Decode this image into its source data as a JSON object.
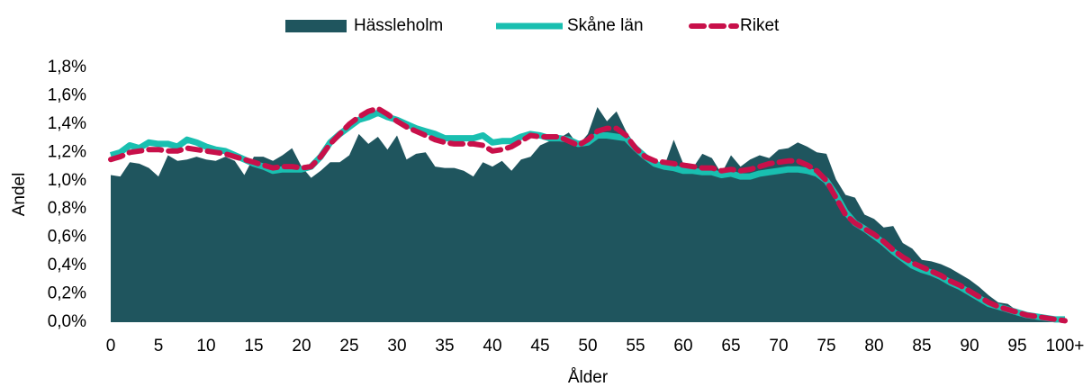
{
  "chart_data": {
    "type": "line",
    "x_label": "Ålder",
    "y_label": "Andel",
    "legend": "top",
    "categories": [
      "0",
      null,
      null,
      null,
      null,
      "5",
      null,
      null,
      null,
      null,
      "10",
      null,
      null,
      null,
      null,
      "15",
      null,
      null,
      null,
      null,
      "20",
      null,
      null,
      null,
      null,
      "25",
      null,
      null,
      null,
      null,
      "30",
      null,
      null,
      null,
      null,
      "35",
      null,
      null,
      null,
      null,
      "40",
      null,
      null,
      null,
      null,
      "45",
      null,
      null,
      null,
      null,
      "50",
      null,
      null,
      null,
      null,
      "55",
      null,
      null,
      null,
      null,
      "60",
      null,
      null,
      null,
      null,
      "65",
      null,
      null,
      null,
      null,
      "70",
      null,
      null,
      null,
      null,
      "75",
      null,
      null,
      null,
      null,
      "80",
      null,
      null,
      null,
      null,
      "85",
      null,
      null,
      null,
      null,
      "90",
      null,
      null,
      null,
      null,
      "95",
      null,
      null,
      null,
      null,
      "100+"
    ],
    "ylim": [
      0,
      1.8
    ],
    "yticks": [
      {
        "value": 0,
        "label": "0,0%"
      },
      {
        "value": 0.2,
        "label": "0,2%"
      },
      {
        "value": 0.4,
        "label": "0,4%"
      },
      {
        "value": 0.6,
        "label": "0,6%"
      },
      {
        "value": 0.8,
        "label": "0,8%"
      },
      {
        "value": 1.0,
        "label": "1,0%"
      },
      {
        "value": 1.2,
        "label": "1,2%"
      },
      {
        "value": 1.4,
        "label": "1,4%"
      },
      {
        "value": 1.6,
        "label": "1,6%"
      },
      {
        "value": 1.8,
        "label": "1,8%"
      }
    ],
    "series": [
      {
        "name": "Hässleholm",
        "type": "area",
        "color": "#1f555e",
        "values": [
          1.04,
          1.03,
          1.13,
          1.12,
          1.09,
          1.03,
          1.18,
          1.14,
          1.15,
          1.17,
          1.15,
          1.14,
          1.17,
          1.14,
          1.04,
          1.17,
          1.17,
          1.14,
          1.18,
          1.23,
          1.1,
          1.02,
          1.07,
          1.13,
          1.13,
          1.18,
          1.33,
          1.26,
          1.31,
          1.22,
          1.32,
          1.15,
          1.19,
          1.2,
          1.1,
          1.09,
          1.09,
          1.07,
          1.03,
          1.13,
          1.1,
          1.14,
          1.07,
          1.15,
          1.17,
          1.25,
          1.28,
          1.3,
          1.34,
          1.25,
          1.33,
          1.52,
          1.42,
          1.49,
          1.35,
          1.25,
          1.15,
          1.1,
          1.1,
          1.29,
          1.12,
          1.09,
          1.19,
          1.16,
          1.05,
          1.18,
          1.1,
          1.15,
          1.18,
          1.16,
          1.22,
          1.23,
          1.27,
          1.24,
          1.2,
          1.19,
          1.01,
          0.9,
          0.88,
          0.76,
          0.73,
          0.67,
          0.68,
          0.56,
          0.52,
          0.44,
          0.43,
          0.41,
          0.38,
          0.34,
          0.3,
          0.25,
          0.19,
          0.14,
          0.13,
          0.08,
          0.06,
          0.05,
          0.03,
          0.02,
          0.02
        ]
      },
      {
        "name": "Skåne län",
        "type": "line",
        "color": "#19bfb0",
        "values": [
          1.18,
          1.2,
          1.25,
          1.23,
          1.27,
          1.26,
          1.26,
          1.24,
          1.29,
          1.27,
          1.24,
          1.22,
          1.21,
          1.18,
          1.15,
          1.12,
          1.1,
          1.07,
          1.08,
          1.08,
          1.08,
          1.1,
          1.17,
          1.27,
          1.33,
          1.38,
          1.43,
          1.45,
          1.48,
          1.45,
          1.43,
          1.4,
          1.37,
          1.35,
          1.33,
          1.3,
          1.3,
          1.3,
          1.3,
          1.32,
          1.27,
          1.28,
          1.28,
          1.31,
          1.33,
          1.32,
          1.3,
          1.3,
          1.29,
          1.26,
          1.27,
          1.32,
          1.32,
          1.31,
          1.3,
          1.23,
          1.17,
          1.12,
          1.1,
          1.09,
          1.07,
          1.07,
          1.06,
          1.06,
          1.04,
          1.05,
          1.03,
          1.03,
          1.05,
          1.06,
          1.07,
          1.08,
          1.08,
          1.07,
          1.05,
          1.0,
          0.9,
          0.78,
          0.7,
          0.66,
          0.61,
          0.56,
          0.5,
          0.45,
          0.4,
          0.37,
          0.35,
          0.32,
          0.28,
          0.25,
          0.21,
          0.17,
          0.13,
          0.11,
          0.09,
          0.07,
          0.05,
          0.04,
          0.03,
          0.02,
          0.02
        ]
      },
      {
        "name": "Riket",
        "type": "line",
        "dashed": true,
        "color": "#c8104a",
        "values": [
          1.15,
          1.17,
          1.2,
          1.21,
          1.22,
          1.22,
          1.21,
          1.21,
          1.23,
          1.22,
          1.21,
          1.2,
          1.19,
          1.17,
          1.15,
          1.13,
          1.11,
          1.09,
          1.1,
          1.1,
          1.09,
          1.1,
          1.17,
          1.26,
          1.33,
          1.4,
          1.45,
          1.49,
          1.51,
          1.47,
          1.42,
          1.38,
          1.35,
          1.32,
          1.29,
          1.27,
          1.26,
          1.26,
          1.26,
          1.25,
          1.21,
          1.22,
          1.24,
          1.28,
          1.32,
          1.31,
          1.31,
          1.31,
          1.28,
          1.25,
          1.29,
          1.35,
          1.37,
          1.37,
          1.32,
          1.23,
          1.17,
          1.14,
          1.13,
          1.12,
          1.11,
          1.1,
          1.09,
          1.09,
          1.07,
          1.08,
          1.07,
          1.08,
          1.1,
          1.12,
          1.13,
          1.14,
          1.14,
          1.11,
          1.07,
          1.0,
          0.88,
          0.76,
          0.7,
          0.66,
          0.62,
          0.57,
          0.51,
          0.46,
          0.42,
          0.39,
          0.36,
          0.33,
          0.29,
          0.26,
          0.22,
          0.18,
          0.14,
          0.11,
          0.09,
          0.07,
          0.05,
          0.04,
          0.03,
          0.02,
          0.01
        ]
      }
    ]
  }
}
